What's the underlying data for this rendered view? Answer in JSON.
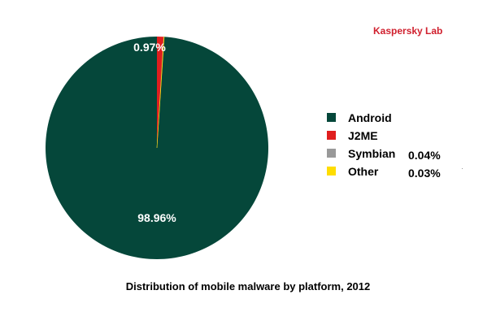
{
  "brand": {
    "text": "Kaspersky Lab",
    "color": "#d0202e"
  },
  "caption": "Distribution of mobile malware by platform, 2012",
  "chart_data": {
    "type": "pie",
    "title": "Distribution of mobile malware by platform, 2012",
    "legend_position": "right",
    "slices": [
      {
        "label": "Android",
        "value": 98.96,
        "value_label": "98.96%",
        "color": "#05473a",
        "show_label_on_slice": true,
        "show_value_in_legend": false
      },
      {
        "label": "J2ME",
        "value": 0.97,
        "value_label": "0.97%",
        "color": "#e01e1e",
        "show_label_on_slice": true,
        "show_value_in_legend": false
      },
      {
        "label": "Symbian",
        "value": 0.04,
        "value_label": "0.04%",
        "color": "#999999",
        "show_label_on_slice": false,
        "show_value_in_legend": true
      },
      {
        "label": "Other",
        "value": 0.03,
        "value_label": "0.03%",
        "color": "#ffdd00",
        "show_label_on_slice": false,
        "show_value_in_legend": true
      }
    ]
  }
}
